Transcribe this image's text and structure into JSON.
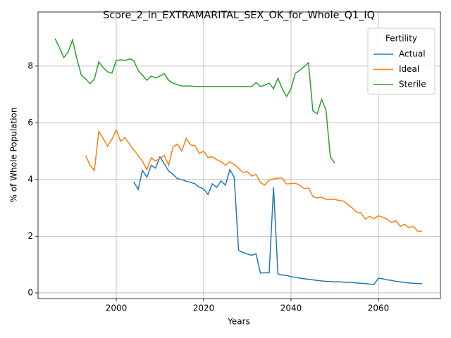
{
  "chart_data": {
    "type": "line",
    "title": "Score_2_in_EXTRAMARITAL_SEX_OK_for_Whole_Q1_IQ",
    "xlabel": "Years",
    "ylabel": "% of Whole Population",
    "legend_title": "Fertility",
    "legend": "upper right",
    "grid": true,
    "xlim": [
      1982.1,
      2074.2
    ],
    "ylim": [
      -0.2,
      9.91
    ],
    "xticks": [
      2000,
      2020,
      2040,
      2060
    ],
    "yticks": [
      0,
      2,
      4,
      6,
      8
    ],
    "x": [
      1986,
      1987,
      1988,
      1989,
      1990,
      1991,
      1992,
      1993,
      1994,
      1995,
      1996,
      1997,
      1998,
      1999,
      2000,
      2001,
      2002,
      2003,
      2004,
      2005,
      2006,
      2007,
      2008,
      2009,
      2010,
      2011,
      2012,
      2013,
      2014,
      2015,
      2016,
      2017,
      2018,
      2019,
      2020,
      2021,
      2022,
      2023,
      2024,
      2025,
      2026,
      2027,
      2028,
      2029,
      2030,
      2031,
      2032,
      2033,
      2034,
      2035,
      2036,
      2037,
      2038,
      2039,
      2040,
      2041,
      2042,
      2043,
      2044,
      2045,
      2046,
      2047,
      2048,
      2049,
      2050,
      2051,
      2052,
      2053,
      2054,
      2055,
      2056,
      2057,
      2058,
      2059,
      2060,
      2061,
      2062,
      2063,
      2064,
      2065,
      2066,
      2067,
      2068,
      2069,
      2070
    ],
    "series": [
      {
        "name": "Actual",
        "color": "#1f77b4",
        "values": [
          null,
          null,
          null,
          null,
          null,
          null,
          null,
          null,
          null,
          null,
          null,
          null,
          null,
          null,
          null,
          null,
          null,
          null,
          3.92,
          3.65,
          4.32,
          4.08,
          4.5,
          4.4,
          4.8,
          4.55,
          4.3,
          4.18,
          4.03,
          4.0,
          3.94,
          3.9,
          3.85,
          3.73,
          3.67,
          3.47,
          3.85,
          3.72,
          3.95,
          3.8,
          4.35,
          4.08,
          1.5,
          1.43,
          1.37,
          1.33,
          1.38,
          0.7,
          0.71,
          0.71,
          3.72,
          0.67,
          0.63,
          0.62,
          0.57,
          0.55,
          0.52,
          0.5,
          0.48,
          0.46,
          0.44,
          0.42,
          0.41,
          0.4,
          0.39,
          0.39,
          0.38,
          0.37,
          0.37,
          0.35,
          0.34,
          0.33,
          0.31,
          0.3,
          0.52,
          0.5,
          0.46,
          0.44,
          0.41,
          0.39,
          0.37,
          0.35,
          0.34,
          0.33,
          0.33
        ]
      },
      {
        "name": "Ideal",
        "color": "#ff7f0e",
        "values": [
          null,
          null,
          null,
          null,
          null,
          null,
          null,
          4.85,
          4.5,
          4.32,
          5.7,
          5.45,
          5.17,
          5.42,
          5.75,
          5.35,
          5.48,
          5.25,
          5.05,
          4.85,
          4.65,
          4.35,
          4.77,
          4.65,
          4.75,
          4.85,
          4.5,
          5.15,
          5.25,
          5.0,
          5.45,
          5.22,
          5.2,
          4.92,
          5.0,
          4.78,
          4.8,
          4.7,
          4.63,
          4.5,
          4.62,
          4.53,
          4.4,
          4.25,
          4.28,
          4.12,
          4.18,
          3.9,
          3.8,
          3.98,
          4.02,
          4.05,
          4.05,
          3.84,
          3.86,
          3.87,
          3.8,
          3.68,
          3.7,
          3.4,
          3.35,
          3.38,
          3.3,
          3.3,
          3.3,
          3.26,
          3.24,
          3.12,
          3.0,
          2.85,
          2.83,
          2.6,
          2.7,
          2.62,
          2.72,
          2.67,
          2.6,
          2.48,
          2.55,
          2.35,
          2.42,
          2.3,
          2.35,
          2.18,
          2.17
        ]
      },
      {
        "name": "Sterile",
        "color": "#2ca02c",
        "values": [
          8.97,
          8.65,
          8.3,
          8.5,
          8.93,
          8.25,
          7.68,
          7.55,
          7.38,
          7.55,
          8.15,
          7.95,
          7.8,
          7.75,
          8.2,
          8.22,
          8.2,
          8.25,
          8.2,
          7.85,
          7.68,
          7.5,
          7.65,
          7.58,
          7.65,
          7.73,
          7.5,
          7.4,
          7.35,
          7.3,
          7.3,
          7.3,
          7.28,
          7.28,
          7.28,
          7.28,
          7.28,
          7.28,
          7.28,
          7.28,
          7.28,
          7.28,
          7.28,
          7.28,
          7.28,
          7.28,
          7.42,
          7.28,
          7.33,
          7.4,
          7.2,
          7.57,
          7.2,
          6.93,
          7.2,
          7.75,
          7.85,
          7.98,
          8.12,
          6.42,
          6.32,
          6.83,
          6.45,
          4.8,
          4.58,
          null,
          null,
          null,
          null,
          null,
          null,
          null,
          null,
          null,
          null,
          null,
          null,
          null,
          null,
          null,
          null,
          null,
          null,
          null,
          null
        ]
      }
    ]
  }
}
